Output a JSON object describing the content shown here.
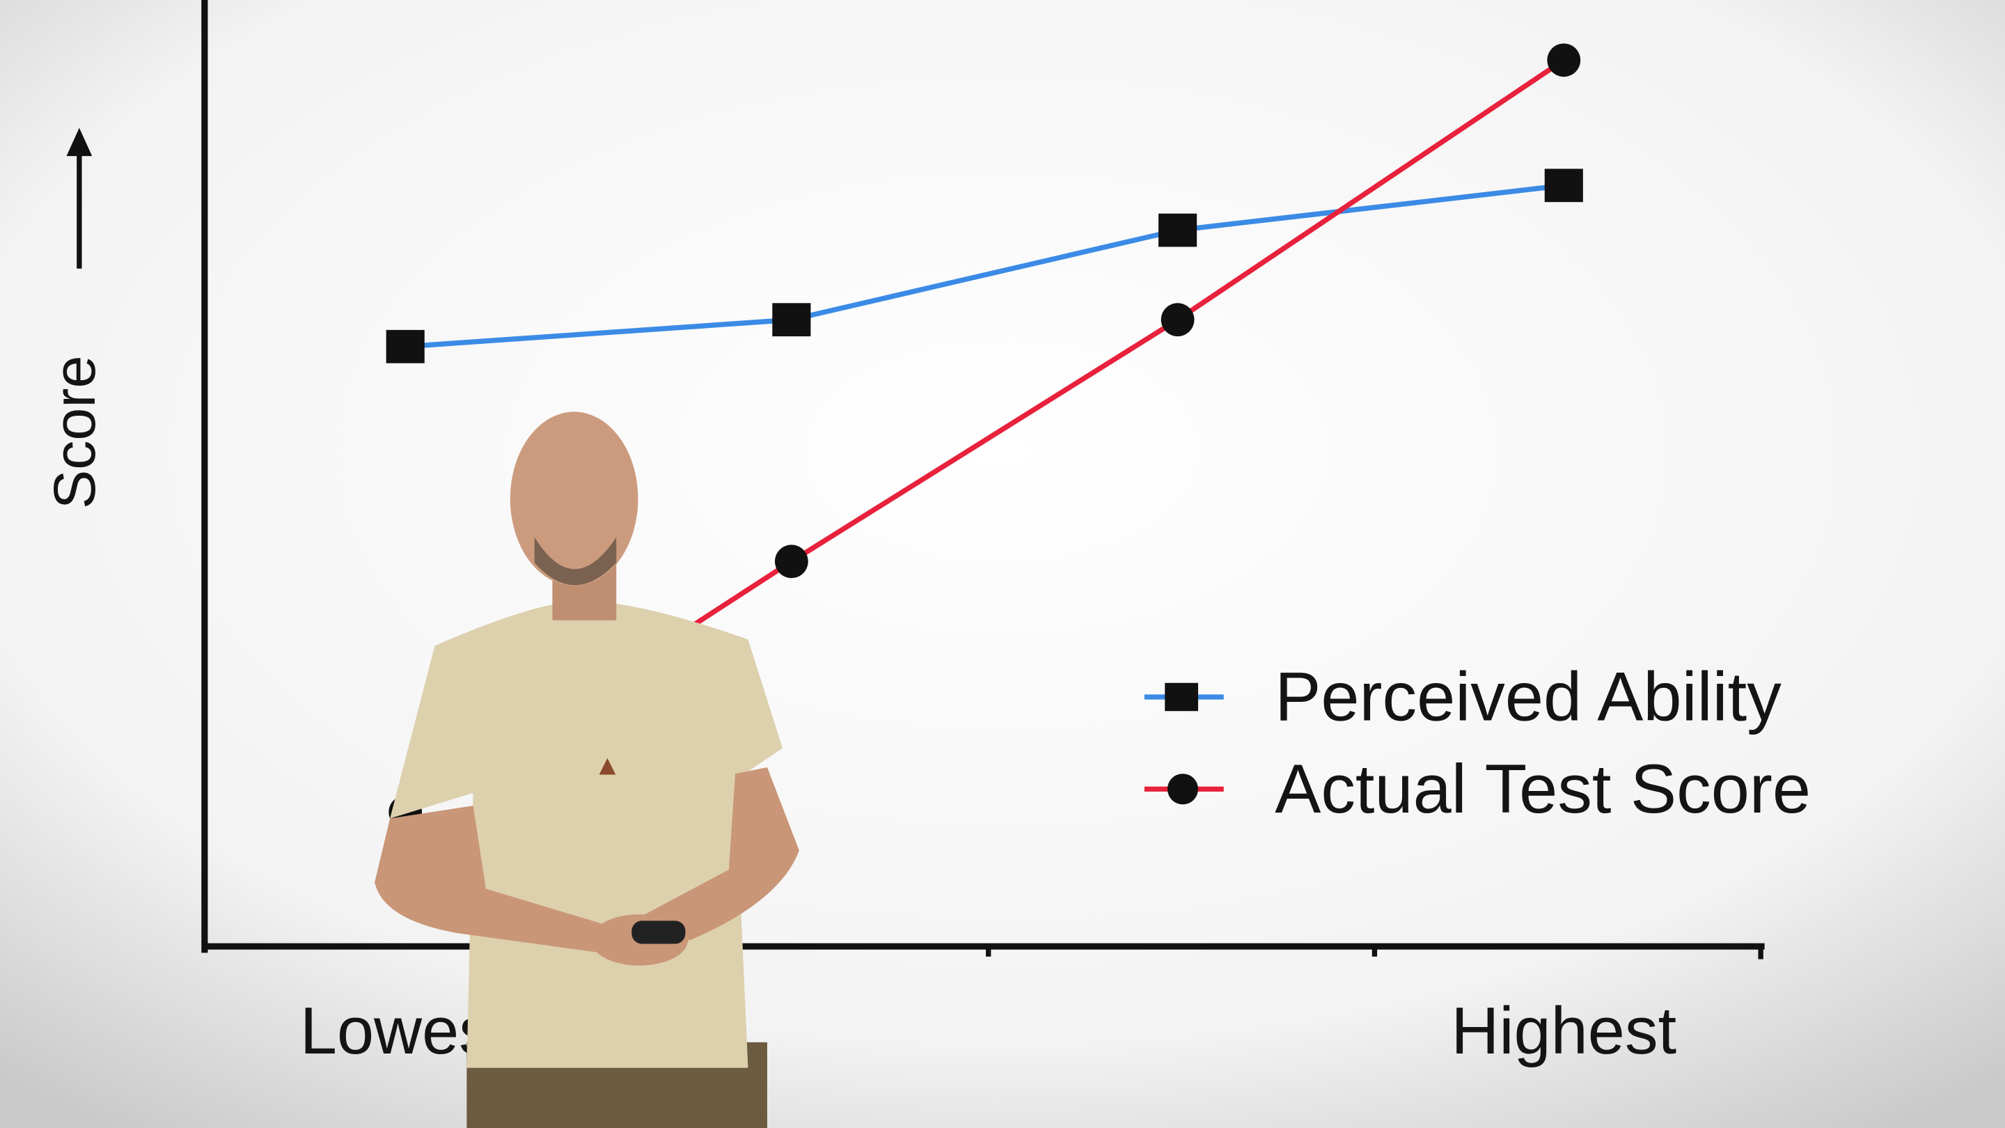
{
  "chart_data": {
    "type": "line",
    "y_label": "Score",
    "categories": [
      "Lowest",
      null,
      null,
      "Highest"
    ],
    "series": [
      {
        "name": "Perceived Ability",
        "color": "#3b8be6",
        "marker": "square",
        "values": [
          67,
          70,
          80,
          85
        ]
      },
      {
        "name": "Actual Test Score",
        "color": "#e8213c",
        "marker": "circle",
        "values": [
          15,
          43,
          70,
          99
        ]
      }
    ],
    "ylim": [
      0,
      100
    ]
  }
}
